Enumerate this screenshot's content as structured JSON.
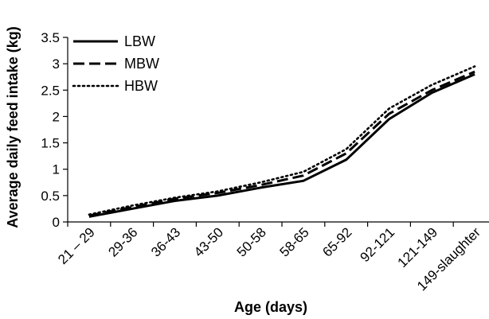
{
  "chart_data": {
    "type": "line",
    "title": "",
    "xlabel": "Age (days)",
    "ylabel": "Average daily feed intake (kg)",
    "ylim": [
      0,
      3.5
    ],
    "yticks": [
      "0",
      "0.5",
      "1",
      "1.5",
      "2",
      "2.5",
      "3",
      "3.5"
    ],
    "grid": false,
    "legend_position": "top-left",
    "categories": [
      "21 – 29",
      "29-36",
      "36-43",
      "43-50",
      "50-58",
      "58-65",
      "65-92",
      "92-121",
      "121-149",
      "149-slaughter"
    ],
    "series": [
      {
        "name": "LBW",
        "style": "solid",
        "color": "#000000",
        "values": [
          0.1,
          0.25,
          0.4,
          0.5,
          0.65,
          0.78,
          1.18,
          1.95,
          2.45,
          2.8
        ]
      },
      {
        "name": "MBW",
        "style": "dashed",
        "color": "#000000",
        "values": [
          0.12,
          0.28,
          0.44,
          0.55,
          0.7,
          0.88,
          1.3,
          2.05,
          2.5,
          2.85
        ]
      },
      {
        "name": "HBW",
        "style": "dotted",
        "color": "#000000",
        "values": [
          0.14,
          0.31,
          0.46,
          0.58,
          0.75,
          0.95,
          1.38,
          2.15,
          2.6,
          2.95
        ]
      }
    ]
  }
}
